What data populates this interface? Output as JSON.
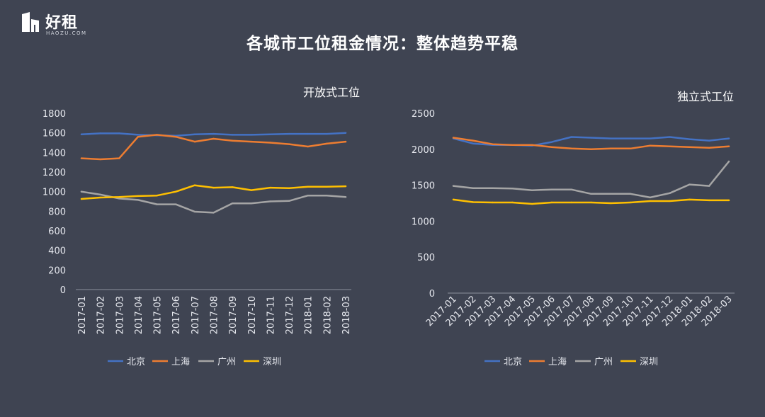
{
  "header": {
    "logo_text": "好租",
    "logo_subtext": "HAOZU.COM",
    "page_title": "各城市工位租金情况：整体趋势平稳"
  },
  "colors": {
    "background": "#3f4452",
    "北京": "#4472c4",
    "上海": "#ed7d31",
    "广州": "#a5a5a5",
    "深圳": "#ffc000"
  },
  "chart_data": [
    {
      "type": "line",
      "title": "开放式工位",
      "categories": [
        "2017-01",
        "2017-02",
        "2017-03",
        "2017-04",
        "2017-05",
        "2017-06",
        "2017-07",
        "2017-08",
        "2017-09",
        "2017-10",
        "2017-11",
        "2017-12",
        "2018-01",
        "2018-02",
        "2018-03"
      ],
      "ylim": [
        0,
        1800
      ],
      "yticks": [
        0,
        200,
        400,
        600,
        800,
        1000,
        1200,
        1400,
        1600,
        1800
      ],
      "legend_position": "bottom",
      "grid": false,
      "series": [
        {
          "name": "北京",
          "color": "#4472c4",
          "values": [
            1585,
            1595,
            1595,
            1580,
            1575,
            1570,
            1585,
            1590,
            1580,
            1580,
            1585,
            1590,
            1590,
            1590,
            1600
          ]
        },
        {
          "name": "上海",
          "color": "#ed7d31",
          "values": [
            1340,
            1330,
            1340,
            1560,
            1580,
            1560,
            1510,
            1540,
            1520,
            1510,
            1500,
            1485,
            1460,
            1490,
            1510
          ]
        },
        {
          "name": "广州",
          "color": "#a5a5a5",
          "values": [
            1000,
            970,
            930,
            915,
            870,
            870,
            795,
            785,
            880,
            880,
            900,
            905,
            960,
            960,
            945
          ]
        },
        {
          "name": "深圳",
          "color": "#ffc000",
          "values": [
            925,
            940,
            945,
            955,
            960,
            1000,
            1065,
            1040,
            1045,
            1015,
            1040,
            1035,
            1050,
            1050,
            1055
          ]
        }
      ]
    },
    {
      "type": "line",
      "title": "独立式工位",
      "categories": [
        "2017-01",
        "2017-02",
        "2017-03",
        "2017-04",
        "2017-05",
        "2017-06",
        "2017-07",
        "2017-08",
        "2017-09",
        "2017-10",
        "2017-11",
        "2017-12",
        "2018-01",
        "2018-02",
        "2018-03"
      ],
      "ylim": [
        0,
        2500
      ],
      "yticks": [
        0,
        500,
        1000,
        1500,
        2000,
        2500
      ],
      "legend_position": "bottom",
      "grid": false,
      "series": [
        {
          "name": "北京",
          "color": "#4472c4",
          "values": [
            2150,
            2080,
            2060,
            2060,
            2050,
            2100,
            2170,
            2160,
            2150,
            2150,
            2150,
            2170,
            2140,
            2120,
            2150
          ]
        },
        {
          "name": "上海",
          "color": "#ed7d31",
          "values": [
            2160,
            2120,
            2070,
            2060,
            2060,
            2030,
            2010,
            2000,
            2010,
            2010,
            2050,
            2040,
            2030,
            2020,
            2040
          ]
        },
        {
          "name": "广州",
          "color": "#a5a5a5",
          "values": [
            1490,
            1460,
            1460,
            1455,
            1430,
            1440,
            1440,
            1380,
            1380,
            1380,
            1330,
            1390,
            1510,
            1490,
            1830
          ]
        },
        {
          "name": "深圳",
          "color": "#ffc000",
          "values": [
            1300,
            1265,
            1260,
            1260,
            1240,
            1260,
            1260,
            1260,
            1250,
            1260,
            1280,
            1280,
            1300,
            1290,
            1290
          ]
        }
      ]
    }
  ]
}
